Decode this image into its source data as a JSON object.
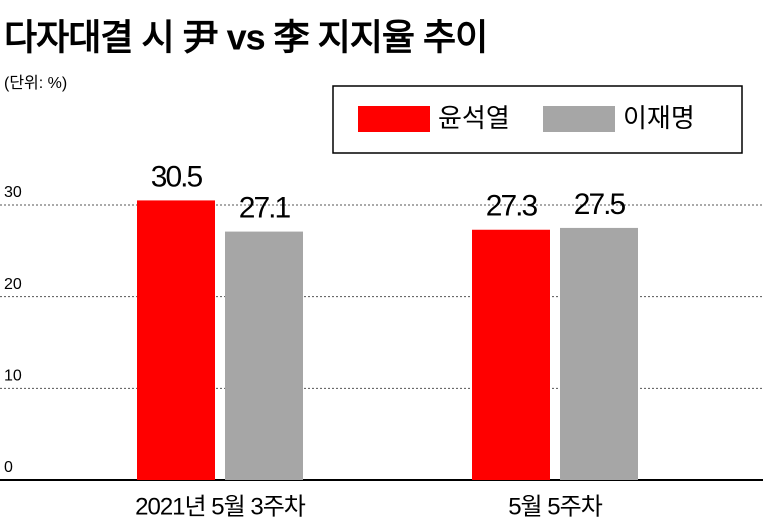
{
  "chart_data": {
    "type": "bar",
    "title": "다자대결 시 尹 vs 李 지지율 추이",
    "subtitle": "(단위: %)",
    "categories": [
      "2021년 5월 3주차",
      "5월 5주차"
    ],
    "series": [
      {
        "name": "윤석열",
        "color": "#ff0000",
        "values": [
          30.5,
          27.3
        ]
      },
      {
        "name": "이재명",
        "color": "#a6a6a6",
        "values": [
          27.1,
          27.5
        ]
      }
    ],
    "ylim": [
      0,
      30
    ],
    "yticks": [
      0,
      10,
      20,
      30
    ],
    "grid": true,
    "legend": "top-right"
  }
}
